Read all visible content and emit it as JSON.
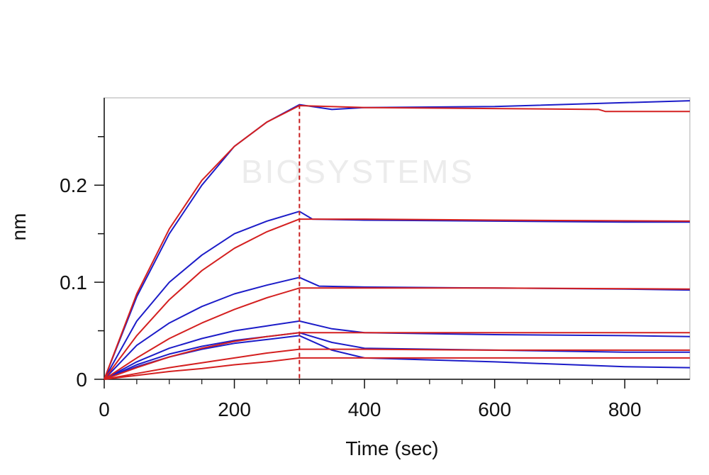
{
  "watermark": "BIOSYSTEMS",
  "colors": {
    "measured": "#1c1cc8",
    "fit": "#d42020",
    "divider": "#c81e1e",
    "axis": "#111111",
    "frame": "#c8c8c8"
  },
  "chart_data": {
    "type": "line",
    "xlabel": "Time (sec)",
    "ylabel": "nm",
    "xlim": [
      0,
      900
    ],
    "ylim": [
      0,
      0.29
    ],
    "x_ticks": [
      0,
      200,
      400,
      600,
      800
    ],
    "x_tick_labels": [
      "0",
      "200",
      "400",
      "600",
      "800"
    ],
    "y_ticks": [
      0,
      0.1,
      0.2
    ],
    "y_tick_labels": [
      "0",
      "0.1",
      "0.2"
    ],
    "association_end": 300,
    "grid": false,
    "legend": "none",
    "measured_series": [
      {
        "plateau": 0.283,
        "values": [
          [
            0,
            0
          ],
          [
            50,
            0.085
          ],
          [
            100,
            0.15
          ],
          [
            150,
            0.2
          ],
          [
            200,
            0.24
          ],
          [
            250,
            0.265
          ],
          [
            300,
            0.283
          ],
          [
            350,
            0.278
          ],
          [
            400,
            0.28
          ],
          [
            600,
            0.281
          ],
          [
            800,
            0.285
          ],
          [
            900,
            0.287
          ]
        ]
      },
      {
        "plateau": 0.173,
        "values": [
          [
            0,
            0
          ],
          [
            50,
            0.06
          ],
          [
            100,
            0.1
          ],
          [
            150,
            0.128
          ],
          [
            200,
            0.15
          ],
          [
            250,
            0.163
          ],
          [
            300,
            0.173
          ],
          [
            320,
            0.165
          ],
          [
            400,
            0.164
          ],
          [
            600,
            0.163
          ],
          [
            800,
            0.162
          ],
          [
            900,
            0.162
          ]
        ]
      },
      {
        "plateau": 0.105,
        "values": [
          [
            0,
            0
          ],
          [
            50,
            0.035
          ],
          [
            100,
            0.058
          ],
          [
            150,
            0.075
          ],
          [
            200,
            0.088
          ],
          [
            250,
            0.097
          ],
          [
            300,
            0.105
          ],
          [
            330,
            0.096
          ],
          [
            400,
            0.095
          ],
          [
            600,
            0.094
          ],
          [
            800,
            0.093
          ],
          [
            900,
            0.092
          ]
        ]
      },
      {
        "plateau": 0.06,
        "values": [
          [
            0,
            0
          ],
          [
            50,
            0.018
          ],
          [
            100,
            0.032
          ],
          [
            150,
            0.042
          ],
          [
            200,
            0.05
          ],
          [
            250,
            0.055
          ],
          [
            300,
            0.06
          ],
          [
            350,
            0.052
          ],
          [
            400,
            0.048
          ],
          [
            600,
            0.046
          ],
          [
            800,
            0.045
          ],
          [
            900,
            0.044
          ]
        ]
      },
      {
        "plateau": 0.048,
        "values": [
          [
            0,
            0
          ],
          [
            50,
            0.015
          ],
          [
            100,
            0.026
          ],
          [
            150,
            0.034
          ],
          [
            200,
            0.04
          ],
          [
            250,
            0.044
          ],
          [
            300,
            0.048
          ],
          [
            350,
            0.038
          ],
          [
            400,
            0.032
          ],
          [
            600,
            0.03
          ],
          [
            800,
            0.028
          ],
          [
            900,
            0.028
          ]
        ]
      },
      {
        "plateau": 0.045,
        "values": [
          [
            0,
            0
          ],
          [
            50,
            0.013
          ],
          [
            100,
            0.023
          ],
          [
            150,
            0.031
          ],
          [
            200,
            0.037
          ],
          [
            250,
            0.041
          ],
          [
            300,
            0.045
          ],
          [
            350,
            0.03
          ],
          [
            400,
            0.022
          ],
          [
            600,
            0.018
          ],
          [
            800,
            0.013
          ],
          [
            900,
            0.012
          ]
        ]
      }
    ],
    "fit_series": [
      {
        "values": [
          [
            0,
            0
          ],
          [
            50,
            0.088
          ],
          [
            100,
            0.155
          ],
          [
            150,
            0.205
          ],
          [
            200,
            0.24
          ],
          [
            250,
            0.265
          ],
          [
            300,
            0.282
          ],
          [
            400,
            0.28
          ],
          [
            600,
            0.279
          ],
          [
            760,
            0.278
          ],
          [
            770,
            0.276
          ],
          [
            900,
            0.276
          ]
        ]
      },
      {
        "values": [
          [
            0,
            0
          ],
          [
            50,
            0.045
          ],
          [
            100,
            0.082
          ],
          [
            150,
            0.112
          ],
          [
            200,
            0.135
          ],
          [
            250,
            0.152
          ],
          [
            300,
            0.165
          ],
          [
            400,
            0.165
          ],
          [
            600,
            0.164
          ],
          [
            900,
            0.163
          ]
        ]
      },
      {
        "values": [
          [
            0,
            0
          ],
          [
            50,
            0.022
          ],
          [
            100,
            0.042
          ],
          [
            150,
            0.058
          ],
          [
            200,
            0.072
          ],
          [
            250,
            0.084
          ],
          [
            300,
            0.094
          ],
          [
            400,
            0.094
          ],
          [
            600,
            0.094
          ],
          [
            900,
            0.093
          ]
        ]
      },
      {
        "values": [
          [
            0,
            0
          ],
          [
            50,
            0.012
          ],
          [
            100,
            0.023
          ],
          [
            150,
            0.032
          ],
          [
            200,
            0.039
          ],
          [
            250,
            0.044
          ],
          [
            300,
            0.048
          ],
          [
            400,
            0.048
          ],
          [
            600,
            0.048
          ],
          [
            900,
            0.048
          ]
        ]
      },
      {
        "values": [
          [
            0,
            0
          ],
          [
            50,
            0.006
          ],
          [
            100,
            0.012
          ],
          [
            150,
            0.017
          ],
          [
            200,
            0.022
          ],
          [
            250,
            0.027
          ],
          [
            300,
            0.031
          ],
          [
            400,
            0.031
          ],
          [
            600,
            0.03
          ],
          [
            900,
            0.03
          ]
        ]
      },
      {
        "values": [
          [
            0,
            0
          ],
          [
            50,
            0.004
          ],
          [
            100,
            0.008
          ],
          [
            150,
            0.011
          ],
          [
            200,
            0.015
          ],
          [
            250,
            0.018
          ],
          [
            300,
            0.022
          ],
          [
            400,
            0.022
          ],
          [
            600,
            0.022
          ],
          [
            900,
            0.022
          ]
        ]
      }
    ]
  }
}
